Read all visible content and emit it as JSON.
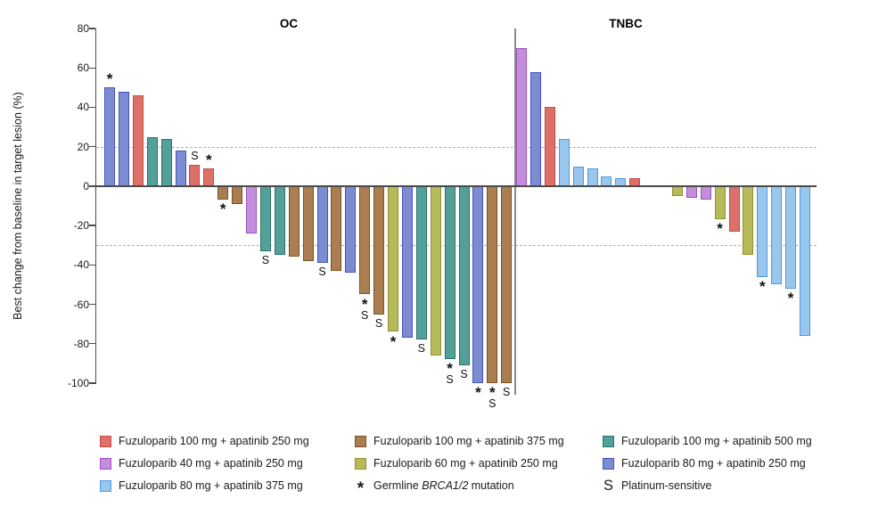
{
  "chart_data": {
    "type": "bar",
    "subtype": "waterfall",
    "y_axis": {
      "title": "Best change from baseline in target lesion (%)",
      "ticks": [
        80,
        60,
        40,
        20,
        0,
        -20,
        -40,
        -60,
        -80,
        -100
      ],
      "max": 80,
      "min": -100
    },
    "reference_lines": [
      20,
      -30
    ],
    "grid": "dashed-reference-only",
    "legend_position": "bottom",
    "groups": {
      "red": {
        "label": "Fuzuloparib 100 mg + apatinib 250 mg",
        "fill": "#DD7169",
        "stroke": "#C24B43"
      },
      "purple": {
        "label": "Fuzuloparib 40 mg + apatinib 250 mg",
        "fill": "#C48FDA",
        "stroke": "#A04EC2"
      },
      "skyblue": {
        "label": "Fuzuloparib 80 mg + apatinib 375 mg",
        "fill": "#99C6EC",
        "stroke": "#4E9BDD"
      },
      "brown": {
        "label": "Fuzuloparib 100 mg + apatinib 375 mg",
        "fill": "#AA7E50",
        "stroke": "#7A5224"
      },
      "olive": {
        "label": "Fuzuloparib 60 mg + apatinib 250 mg",
        "fill": "#B7BA59",
        "stroke": "#8F922D"
      },
      "teal": {
        "label": "Fuzuloparib 100 mg + apatinib 500 mg",
        "fill": "#52A099",
        "stroke": "#2B7268"
      },
      "blue": {
        "label": "Fuzuloparib 80 mg + apatinib 250 mg",
        "fill": "#7D8CD0",
        "stroke": "#4353C4"
      }
    },
    "symbols": {
      "asterisk": {
        "glyph": "*",
        "prefix": "Germline ",
        "gene": "BRCA1/2",
        "suffix": " mutation"
      },
      "platinum": {
        "glyph": "S",
        "label": "Platinum-sensitive"
      }
    },
    "legend_columns": [
      [
        "red",
        "purple",
        "skyblue"
      ],
      [
        "brown",
        "olive",
        "asterisk"
      ],
      [
        "teal",
        "blue",
        "platinum"
      ]
    ],
    "panels": [
      {
        "label": "OC",
        "bars": [
          {
            "g": "blue",
            "v": 50,
            "m": true
          },
          {
            "g": "blue",
            "v": 48
          },
          {
            "g": "red",
            "v": 46
          },
          {
            "g": "teal",
            "v": 25
          },
          {
            "g": "teal",
            "v": 24
          },
          {
            "g": "blue",
            "v": 18
          },
          {
            "g": "red",
            "v": 11,
            "s": true
          },
          {
            "g": "red",
            "v": 9,
            "m": true
          },
          {
            "g": "brown",
            "v": -7,
            "m": true
          },
          {
            "g": "brown",
            "v": -9
          },
          {
            "g": "purple",
            "v": -24
          },
          {
            "g": "teal",
            "v": -33,
            "s": true
          },
          {
            "g": "teal",
            "v": -35
          },
          {
            "g": "brown",
            "v": -36
          },
          {
            "g": "brown",
            "v": -38
          },
          {
            "g": "blue",
            "v": -39,
            "s": true
          },
          {
            "g": "brown",
            "v": -43
          },
          {
            "g": "blue",
            "v": -44
          },
          {
            "g": "brown",
            "v": -55,
            "m": true,
            "s": true
          },
          {
            "g": "brown",
            "v": -65,
            "s": true
          },
          {
            "g": "olive",
            "v": -74,
            "m": true
          },
          {
            "g": "blue",
            "v": -77
          },
          {
            "g": "teal",
            "v": -78,
            "s": true
          },
          {
            "g": "olive",
            "v": -86
          },
          {
            "g": "teal",
            "v": -88,
            "m": true,
            "s": true
          },
          {
            "g": "teal",
            "v": -91,
            "s": true
          },
          {
            "g": "blue",
            "v": -100,
            "m": true
          },
          {
            "g": "brown",
            "v": -100,
            "m": true,
            "s": true
          },
          {
            "g": "brown",
            "v": -100,
            "s": true
          }
        ]
      },
      {
        "label": "TNBC",
        "bars": [
          {
            "g": "purple",
            "v": 70
          },
          {
            "g": "blue",
            "v": 58
          },
          {
            "g": "red",
            "v": 40
          },
          {
            "g": "skyblue",
            "v": 24
          },
          {
            "g": "skyblue",
            "v": 10
          },
          {
            "g": "skyblue",
            "v": 9
          },
          {
            "g": "skyblue",
            "v": 5
          },
          {
            "g": "skyblue",
            "v": 4
          },
          {
            "g": "red",
            "v": 4
          },
          {
            "g": "olive",
            "v": -5,
            "gap_before": 2
          },
          {
            "g": "purple",
            "v": -6
          },
          {
            "g": "purple",
            "v": -7
          },
          {
            "g": "olive",
            "v": -17,
            "m": true
          },
          {
            "g": "red",
            "v": -23
          },
          {
            "g": "olive",
            "v": -35
          },
          {
            "g": "skyblue",
            "v": -46,
            "m": true
          },
          {
            "g": "skyblue",
            "v": -50
          },
          {
            "g": "skyblue",
            "v": -52,
            "m": true
          },
          {
            "g": "skyblue",
            "v": -76
          }
        ]
      }
    ]
  }
}
